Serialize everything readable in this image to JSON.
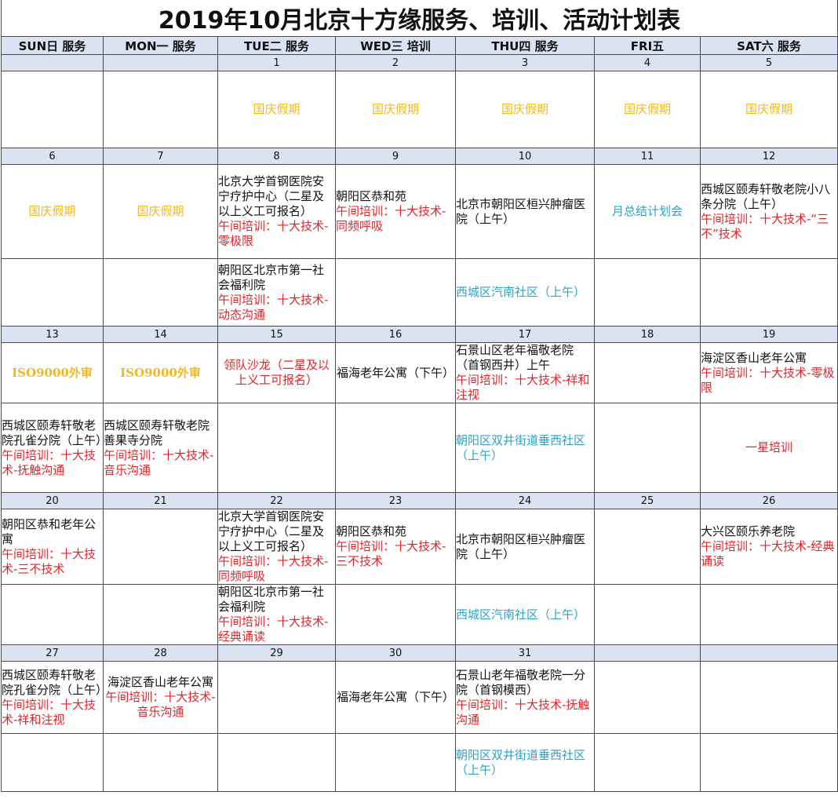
{
  "title": "2019年10月北京十方缘服务、培训、活动计划表",
  "headers": [
    "SUN日 服务",
    "MON一 服务",
    "TUE二 服务",
    "WED三 培训",
    "THU四 服务",
    "FRI五",
    "SAT六 服务"
  ],
  "weeks": [
    {
      "days": [
        "",
        "",
        "1",
        "2",
        "3",
        "4",
        "5"
      ],
      "row1": [
        null,
        null,
        {
          "a": [
            {
              "t": "国庆假期",
              "c": "gold"
            }
          ]
        },
        {
          "a": [
            {
              "t": "国庆假期",
              "c": "gold"
            }
          ]
        },
        {
          "a": [
            {
              "t": "国庆假期",
              "c": "gold"
            }
          ]
        },
        {
          "a": [
            {
              "t": "国庆假期",
              "c": "gold"
            }
          ]
        },
        {
          "a": [
            {
              "t": "国庆假期",
              "c": "gold"
            }
          ]
        }
      ],
      "row2": null
    },
    {
      "days": [
        "6",
        "7",
        "8",
        "9",
        "10",
        "11",
        "12"
      ],
      "row1": [
        {
          "a": [
            {
              "t": "国庆假期",
              "c": "gold"
            }
          ]
        },
        {
          "a": [
            {
              "t": "国庆假期",
              "c": "gold"
            }
          ]
        },
        {
          "a": [
            {
              "t": "北京大学首钢医院安宁疗护中心（二星及以上义工可报名）",
              "c": "black"
            },
            {
              "t": "午间培训：十大技术-零极限",
              "c": "red"
            }
          ]
        },
        {
          "a": [
            {
              "t": "朝阳区恭和苑",
              "c": "black"
            },
            {
              "t": "午间培训：十大技术-同频呼吸",
              "c": "red"
            }
          ]
        },
        {
          "a": [
            {
              "t": "北京市朝阳区桓兴肿瘤医院（上午）",
              "c": "black"
            }
          ]
        },
        {
          "a": [
            {
              "t": "月总结计划会",
              "c": "teal"
            }
          ]
        },
        {
          "a": [
            {
              "t": "西城区颐寿轩敬老院小八条分院（上午）",
              "c": "black"
            },
            {
              "t": "午间培训：十大技术-“三不”技术",
              "c": "red"
            }
          ]
        }
      ],
      "row2": [
        null,
        null,
        {
          "a": [
            {
              "t": "朝阳区北京市第一社会福利院",
              "c": "black"
            },
            {
              "t": "午间培训：十大技术-动态沟通",
              "c": "red"
            }
          ]
        },
        null,
        {
          "a": [
            {
              "t": "西城区汽南社区（上午）",
              "c": "teal"
            }
          ]
        },
        null,
        null
      ]
    },
    {
      "days": [
        "13",
        "14",
        "15",
        "16",
        "17",
        "18",
        "19"
      ],
      "row1": [
        {
          "a": [
            {
              "t": "ISO9000外审",
              "c": "goldb"
            }
          ]
        },
        {
          "a": [
            {
              "t": "ISO9000外审",
              "c": "goldb"
            }
          ]
        },
        {
          "a": [
            {
              "t": "领队沙龙（二星及以上义工可报名）",
              "c": "red"
            }
          ]
        },
        {
          "a": [
            {
              "t": "福海老年公寓（下午）",
              "c": "black"
            }
          ]
        },
        {
          "a": [
            {
              "t": "石景山区老年福敬老院（首钢西井）上午",
              "c": "black"
            },
            {
              "t": "午间培训：十大技术-祥和注视",
              "c": "red"
            }
          ]
        },
        null,
        {
          "a": [
            {
              "t": "海淀区香山老年公寓",
              "c": "black"
            },
            {
              "t": "午间培训：十大技术-零极限",
              "c": "red"
            }
          ]
        }
      ],
      "row2": [
        {
          "a": [
            {
              "t": "西城区颐寿轩敬老院孔雀分院（上午）",
              "c": "black"
            },
            {
              "t": "午间培训：十大技术-抚触沟通",
              "c": "red"
            }
          ]
        },
        {
          "a": [
            {
              "t": "西城区颐寿轩敬老院善果寺分院",
              "c": "black"
            },
            {
              "t": "午间培训：十大技术-音乐沟通",
              "c": "red"
            }
          ]
        },
        null,
        null,
        {
          "a": [
            {
              "t": "朝阳区双井街道垂西社区（上午）",
              "c": "teal"
            }
          ]
        },
        null,
        {
          "a": [
            {
              "t": "一星培训",
              "c": "red"
            }
          ]
        }
      ]
    },
    {
      "days": [
        "20",
        "21",
        "22",
        "23",
        "24",
        "25",
        "26"
      ],
      "row1": [
        {
          "a": [
            {
              "t": "朝阳区恭和老年公寓",
              "c": "black"
            },
            {
              "t": "午间培训：十大技术-三不技术",
              "c": "red"
            }
          ]
        },
        null,
        {
          "a": [
            {
              "t": "北京大学首钢医院安宁疗护中心（二星及以上义工可报名）",
              "c": "black"
            },
            {
              "t": "午间培训：十大技术-同频呼吸",
              "c": "red"
            }
          ]
        },
        {
          "a": [
            {
              "t": "朝阳区恭和苑",
              "c": "black"
            },
            {
              "t": "午间培训：十大技术-三不技术",
              "c": "red"
            }
          ]
        },
        {
          "a": [
            {
              "t": "北京市朝阳区桓兴肿瘤医院（上午）",
              "c": "black"
            }
          ]
        },
        null,
        {
          "a": [
            {
              "t": "大兴区颐乐养老院",
              "c": "black"
            },
            {
              "t": "午间培训：十大技术-经典诵读",
              "c": "red"
            }
          ]
        }
      ],
      "row2": [
        null,
        null,
        {
          "a": [
            {
              "t": "朝阳区北京市第一社会福利院",
              "c": "black"
            },
            {
              "t": "午间培训：十大技术-经典诵读",
              "c": "red"
            }
          ]
        },
        null,
        {
          "a": [
            {
              "t": "西城区汽南社区（上午）",
              "c": "teal"
            }
          ]
        },
        null,
        null
      ]
    },
    {
      "days": [
        "27",
        "28",
        "29",
        "30",
        "31",
        "",
        ""
      ],
      "row1": [
        {
          "a": [
            {
              "t": "西城区颐寿轩敬老院孔雀分院（上午）",
              "c": "black"
            },
            {
              "t": "午间培训：十大技术-祥和注视",
              "c": "red"
            }
          ]
        },
        {
          "a": [
            {
              "t": "海淀区香山老年公寓",
              "c": "black"
            },
            {
              "t": "午间培训：十大技术-音乐沟通",
              "c": "red"
            }
          ]
        },
        null,
        {
          "a": [
            {
              "t": "福海老年公寓（下午）",
              "c": "black"
            }
          ]
        },
        {
          "a": [
            {
              "t": "石景山老年福敬老院一分院（首钢模西）",
              "c": "black"
            },
            {
              "t": "午间培训：十大技术-抚触沟通",
              "c": "red"
            }
          ]
        },
        null,
        null
      ],
      "row2": [
        null,
        null,
        null,
        null,
        {
          "a": [
            {
              "t": "朝阳区双井街道垂西社区（上午）",
              "c": "teal"
            }
          ]
        },
        null,
        null
      ]
    }
  ]
}
